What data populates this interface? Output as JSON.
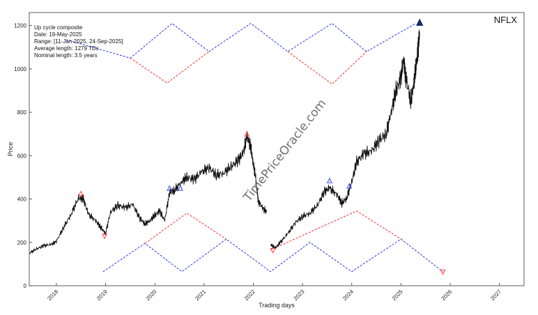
{
  "chart_data": {
    "type": "line",
    "ticker": "NFLX",
    "xlabel": "Trading days",
    "ylabel": "Price",
    "xlim": [
      2017.45,
      2027.5
    ],
    "ylim": [
      0,
      1260
    ],
    "yticks": [
      0,
      200,
      400,
      600,
      800,
      1000,
      1200
    ],
    "xticks": [
      2018,
      2019,
      2020,
      2021,
      2022,
      2023,
      2024,
      2025,
      2026,
      2027
    ],
    "xtick_labels": [
      "2018",
      "2019",
      "2020",
      "2021",
      "2022",
      "2023",
      "2024",
      "2025",
      "2026",
      "2027"
    ],
    "grid": false,
    "info_lines": [
      "Up cycle composite",
      "Date: 19-May-2025",
      "Range: [11-Jan-2025, 24-Sep-2025]",
      "Average length: 1279 TDs",
      "Nominal length: 3.5 years"
    ],
    "watermark": "TimePriceOracle.com",
    "colors": {
      "price": "#111111",
      "red": "#ff2a2a",
      "blue": "#2233ee",
      "navy": "#1a2a66"
    },
    "price_series": {
      "x": [
        2017.45,
        2017.6,
        2017.75,
        2017.9,
        2018.0,
        2018.15,
        2018.3,
        2018.45,
        2018.55,
        2018.65,
        2018.8,
        2018.9,
        2019.0,
        2019.1,
        2019.25,
        2019.4,
        2019.55,
        2019.7,
        2019.8,
        2019.9,
        2020.0,
        2020.1,
        2020.2,
        2020.3,
        2020.4,
        2020.55,
        2020.65,
        2020.8,
        2020.95,
        2021.1,
        2021.25,
        2021.4,
        2021.55,
        2021.7,
        2021.8,
        2021.87,
        2021.95,
        2022.0,
        2022.05,
        2022.1,
        2022.2,
        2022.28,
        2022.35,
        2022.45,
        2022.55,
        2022.7,
        2022.85,
        2023.0,
        2023.15,
        2023.3,
        2023.45,
        2023.55,
        2023.7,
        2023.8,
        2023.9,
        2024.0,
        2024.1,
        2024.25,
        2024.4,
        2024.55,
        2024.7,
        2024.8,
        2024.9,
        2025.0,
        2025.05,
        2025.1,
        2025.2,
        2025.25,
        2025.3,
        2025.35,
        2025.38
      ],
      "y": [
        150,
        170,
        185,
        190,
        205,
        270,
        330,
        405,
        400,
        330,
        300,
        270,
        240,
        340,
        370,
        360,
        375,
        310,
        285,
        300,
        325,
        345,
        300,
        430,
        440,
        480,
        500,
        490,
        525,
        545,
        510,
        520,
        550,
        580,
        615,
        690,
        640,
        560,
        500,
        390,
        355,
        340,
        190,
        175,
        200,
        240,
        290,
        320,
        335,
        370,
        435,
        450,
        420,
        380,
        405,
        480,
        570,
        610,
        620,
        670,
        700,
        800,
        900,
        960,
        1040,
        960,
        850,
        920,
        1000,
        1100,
        1160
      ]
    },
    "up_cycle_lines": [
      {
        "color": "red",
        "x": [
          2018.2,
          2019.85,
          2020.3,
          2022.05,
          2022.35,
          2024.1,
          2024.75,
          2025.9
        ]
      },
      {
        "color": "blue",
        "x": [
          2018.95,
          2020.25,
          2020.65,
          2022.35,
          2022.55,
          2024.25,
          2024.75
        ]
      }
    ],
    "lines": [
      {
        "color": "blue",
        "x": [
          2018.2,
          2019.5,
          2020.35,
          2021.1,
          2021.95,
          2022.7,
          2023.6,
          2024.3,
          2025.3
        ],
        "y": [
          1135,
          1050,
          1210,
          1080,
          1210,
          1080,
          1210,
          1080,
          1210
        ]
      },
      {
        "color": "red",
        "x": [
          2019.5,
          2020.25,
          2021.1
        ],
        "y": [
          1050,
          935,
          1080
        ]
      },
      {
        "color": "red",
        "x": [
          2022.7,
          2023.6,
          2024.3
        ],
        "y": [
          1080,
          930,
          1080
        ]
      },
      {
        "color": "blue",
        "x": [
          2018.95,
          2019.8,
          2020.55,
          2021.45,
          2022.35,
          2023.15,
          2024.0,
          2025.0
        ],
        "y": [
          65,
          195,
          65,
          215,
          65,
          200,
          65,
          215
        ]
      },
      {
        "color": "red",
        "x": [
          2019.8,
          2020.65,
          2021.45
        ],
        "y": [
          195,
          335,
          215
        ]
      },
      {
        "color": "red",
        "x": [
          2022.35,
          2024.1,
          2025.0
        ],
        "y": [
          165,
          345,
          215
        ]
      },
      {
        "color": "blue",
        "x": [
          2025.0,
          2025.85
        ],
        "y": [
          215,
          65
        ]
      }
    ],
    "markers": [
      {
        "shape": "triangle-up",
        "color": "red",
        "x": 2018.5,
        "y": 425
      },
      {
        "shape": "triangle-down",
        "color": "red",
        "x": 2018.98,
        "y": 228
      },
      {
        "shape": "triangle-up",
        "color": "blue",
        "x": 2020.3,
        "y": 450
      },
      {
        "shape": "triangle-up",
        "color": "blue",
        "x": 2020.52,
        "y": 450
      },
      {
        "shape": "triangle-up",
        "color": "red",
        "x": 2021.87,
        "y": 700
      },
      {
        "shape": "triangle-down",
        "color": "red",
        "x": 2022.4,
        "y": 162
      },
      {
        "shape": "triangle-up",
        "color": "blue",
        "x": 2023.55,
        "y": 485
      },
      {
        "shape": "triangle-up",
        "color": "blue",
        "x": 2023.95,
        "y": 460
      },
      {
        "shape": "triangle-down",
        "color": "red",
        "x": 2025.85,
        "y": 63
      },
      {
        "shape": "triangle-up-filled",
        "color": "navy",
        "x": 2025.38,
        "y": 1215
      }
    ]
  }
}
